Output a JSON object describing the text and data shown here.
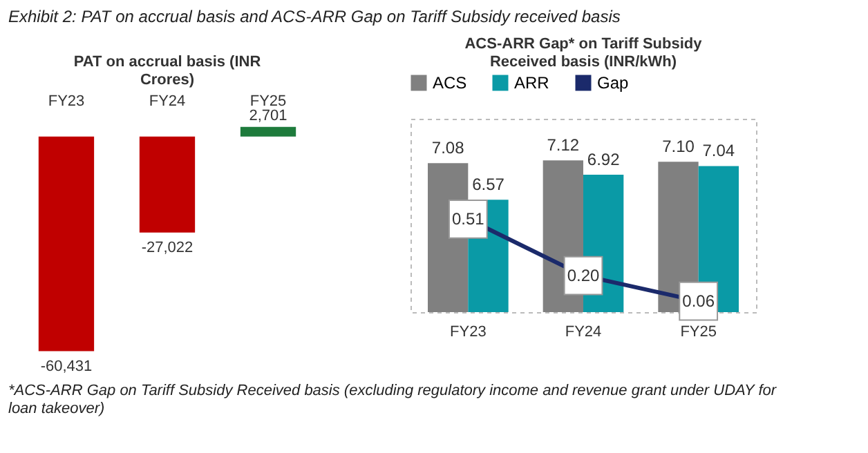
{
  "chart_data": [
    {
      "type": "bar",
      "title": "PAT on accrual basis (INR Crores)",
      "categories": [
        "FY23",
        "FY24",
        "FY25"
      ],
      "values": [
        -60431,
        -27022,
        2701
      ],
      "value_labels": [
        "-60,431",
        "-27,022",
        "2,701"
      ],
      "colors": [
        "#c00000",
        "#c00000",
        "#1e7b3c"
      ],
      "tick_labels": "x",
      "annotations": [
        "Exhibit 2: PAT on accrual basis and ACS-ARR Gap on Tariff Subsidy received basis"
      ]
    },
    {
      "type": "bar",
      "title": "ACS-ARR Gap* on Tariff Subsidy Received basis (INR/kWh)",
      "categories": [
        "FY23",
        "FY24",
        "FY25"
      ],
      "ylim": [
        5,
        7.7
      ],
      "y2lim": [
        0,
        1.06
      ],
      "tick_labels": "x",
      "legend": "top",
      "series": [
        {
          "name": "ACS",
          "color": "#808080",
          "values": [
            7.08,
            7.12,
            7.1
          ],
          "value_labels": [
            "7.08",
            "7.12",
            "7.10"
          ]
        },
        {
          "name": "ARR",
          "color": "#0a9aa6",
          "values": [
            6.57,
            6.92,
            7.04
          ],
          "value_labels": [
            "6.57",
            "6.92",
            "7.04"
          ]
        },
        {
          "name": "Gap",
          "type": "line",
          "axis": "y2",
          "color": "#1b2a6b",
          "values": [
            0.51,
            0.2,
            0.06
          ],
          "value_labels": [
            "0.51",
            "0.20",
            "0.06"
          ],
          "marker": "square"
        }
      ],
      "annotations": [
        "*ACS-ARR Gap on Tariff Subsidy Received basis (excluding regulatory income and revenue grant under UDAY for loan takeover)"
      ]
    }
  ]
}
